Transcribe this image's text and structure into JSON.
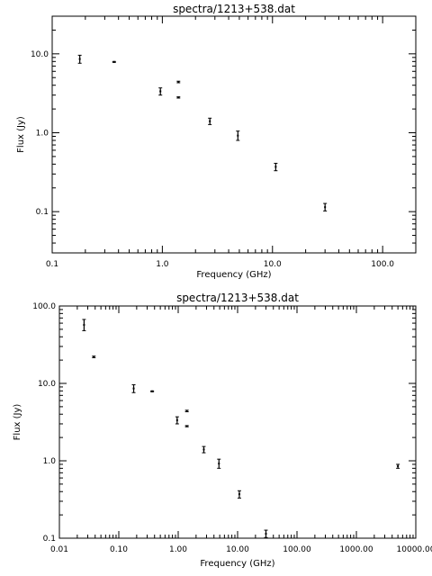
{
  "chart_data": [
    {
      "type": "scatter",
      "title": "spectra/1213+538.dat",
      "xlabel": "Frequency (GHz)",
      "ylabel": "Flux (Jy)",
      "xscale": "log",
      "yscale": "log",
      "xlim": [
        0.1,
        200
      ],
      "ylim": [
        0.03,
        30
      ],
      "xticks": [
        {
          "v": 0.1,
          "label": "0.1"
        },
        {
          "v": 1,
          "label": "1.0"
        },
        {
          "v": 10,
          "label": "10.0"
        },
        {
          "v": 100,
          "label": "100.0"
        }
      ],
      "yticks": [
        {
          "v": 0.1,
          "label": "0.1"
        },
        {
          "v": 1,
          "label": "1.0"
        },
        {
          "v": 10,
          "label": "10.0"
        }
      ],
      "points": [
        {
          "x": 0.178,
          "y": 8.6,
          "ylo": 7.6,
          "yhi": 9.6
        },
        {
          "x": 0.365,
          "y": 7.9,
          "ylo": 7.8,
          "yhi": 8.0
        },
        {
          "x": 0.96,
          "y": 3.35,
          "ylo": 3.0,
          "yhi": 3.7
        },
        {
          "x": 1.4,
          "y": 4.4,
          "ylo": 4.3,
          "yhi": 4.5
        },
        {
          "x": 1.4,
          "y": 2.8,
          "ylo": 2.75,
          "yhi": 2.85
        },
        {
          "x": 2.7,
          "y": 1.4,
          "ylo": 1.27,
          "yhi": 1.53
        },
        {
          "x": 4.85,
          "y": 0.92,
          "ylo": 0.8,
          "yhi": 1.05
        },
        {
          "x": 10.7,
          "y": 0.37,
          "ylo": 0.33,
          "yhi": 0.41
        },
        {
          "x": 30,
          "y": 0.114,
          "ylo": 0.102,
          "yhi": 0.127
        }
      ]
    },
    {
      "type": "scatter",
      "title": "spectra/1213+538.dat",
      "xlabel": "Frequency (GHz)",
      "ylabel": "Flux (Jy)",
      "xscale": "log",
      "yscale": "log",
      "xlim": [
        0.01,
        10000
      ],
      "ylim": [
        0.1,
        100
      ],
      "xticks": [
        {
          "v": 0.01,
          "label": "0.01"
        },
        {
          "v": 0.1,
          "label": "0.10"
        },
        {
          "v": 1,
          "label": "1.00"
        },
        {
          "v": 10,
          "label": "10.00"
        },
        {
          "v": 100,
          "label": "100.00"
        },
        {
          "v": 1000,
          "label": "1000.00"
        },
        {
          "v": 10000,
          "label": "10000.00"
        }
      ],
      "yticks": [
        {
          "v": 0.1,
          "label": "0.1"
        },
        {
          "v": 1,
          "label": "1.0"
        },
        {
          "v": 10,
          "label": "10.0"
        },
        {
          "v": 100,
          "label": "100.0"
        }
      ],
      "points": [
        {
          "x": 0.026,
          "y": 57,
          "ylo": 48,
          "yhi": 67
        },
        {
          "x": 0.038,
          "y": 22,
          "ylo": 21.5,
          "yhi": 22.5
        },
        {
          "x": 0.178,
          "y": 8.6,
          "ylo": 7.6,
          "yhi": 9.6
        },
        {
          "x": 0.365,
          "y": 7.9,
          "ylo": 7.8,
          "yhi": 8.0
        },
        {
          "x": 0.96,
          "y": 3.35,
          "ylo": 3.0,
          "yhi": 3.7
        },
        {
          "x": 1.4,
          "y": 4.4,
          "ylo": 4.3,
          "yhi": 4.5
        },
        {
          "x": 1.4,
          "y": 2.8,
          "ylo": 2.75,
          "yhi": 2.85
        },
        {
          "x": 2.7,
          "y": 1.4,
          "ylo": 1.27,
          "yhi": 1.53
        },
        {
          "x": 4.85,
          "y": 0.92,
          "ylo": 0.8,
          "yhi": 1.05
        },
        {
          "x": 10.7,
          "y": 0.37,
          "ylo": 0.33,
          "yhi": 0.41
        },
        {
          "x": 30,
          "y": 0.114,
          "ylo": 0.102,
          "yhi": 0.127
        },
        {
          "x": 5000,
          "y": 0.85,
          "ylo": 0.8,
          "yhi": 0.9
        }
      ]
    }
  ]
}
